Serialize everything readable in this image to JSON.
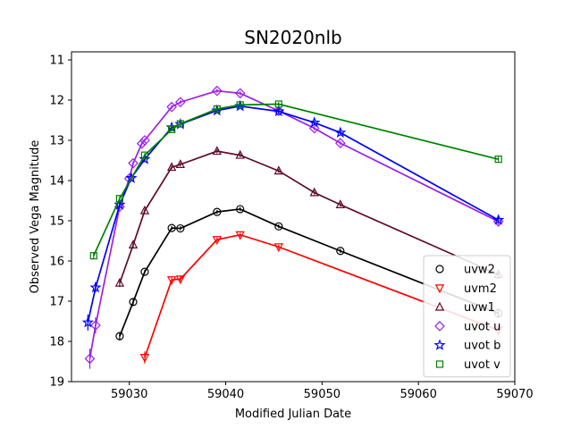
{
  "chart_data": {
    "type": "scatter",
    "title": "SN2020nlb",
    "xlabel": "Modified Julian Date",
    "ylabel": "Observed Vega Magnitude",
    "xlim": [
      59024,
      59070
    ],
    "ylim": [
      19,
      10.8
    ],
    "y_inverted": true,
    "grid": false,
    "legend_position": "lower-right",
    "xticks": [
      59030,
      59040,
      59050,
      59060,
      59070
    ],
    "yticks": [
      11,
      12,
      13,
      14,
      15,
      16,
      17,
      18,
      19
    ],
    "series": [
      {
        "name": "uvw2",
        "marker": "circle",
        "color": "#000000",
        "x": [
          59029.0,
          59030.4,
          59031.6,
          59034.4,
          59035.3,
          59039.1,
          59041.5,
          59045.5,
          59051.9,
          59068.3
        ],
        "y": [
          17.87,
          17.02,
          16.27,
          15.18,
          15.19,
          14.78,
          14.71,
          15.14,
          15.75,
          17.3
        ],
        "err": [
          0.1,
          0.08,
          0.05,
          0.05,
          0.05,
          0.05,
          0.05,
          0.05,
          0.05,
          0.12
        ]
      },
      {
        "name": "uvm2",
        "marker": "triangle-down",
        "color": "#ff0000",
        "x": [
          59031.6,
          59034.4,
          59035.3,
          59039.1,
          59041.5,
          59045.5,
          59068.3
        ],
        "y": [
          18.4,
          16.47,
          16.45,
          15.47,
          15.35,
          15.65,
          17.72
        ],
        "err": [
          0.15,
          0.06,
          0.06,
          0.05,
          0.05,
          0.05,
          0.12
        ]
      },
      {
        "name": "uvw1",
        "marker": "triangle-up",
        "color": "#5e0a26",
        "x": [
          59029.0,
          59030.4,
          59031.6,
          59034.4,
          59035.3,
          59039.1,
          59041.5,
          59045.5,
          59049.2,
          59051.9,
          59068.3
        ],
        "y": [
          16.55,
          15.6,
          14.75,
          13.67,
          13.6,
          13.27,
          13.37,
          13.76,
          14.3,
          14.6,
          16.34
        ],
        "err": [
          0.1,
          0.08,
          0.05,
          0.05,
          0.05,
          0.05,
          0.05,
          0.05,
          0.05,
          0.05,
          0.1
        ]
      },
      {
        "name": "uvot u",
        "marker": "diamond",
        "color": "#9b1fe8",
        "x": [
          59025.9,
          59026.5,
          59029.0,
          59030.0,
          59030.4,
          59031.3,
          59031.6,
          59034.4,
          59035.3,
          59039.1,
          59041.5,
          59045.5,
          59049.2,
          59051.9,
          59068.3
        ],
        "y": [
          18.43,
          17.6,
          14.65,
          13.95,
          13.57,
          13.08,
          13.0,
          12.17,
          12.05,
          11.77,
          11.83,
          12.27,
          12.7,
          13.07,
          15.02
        ],
        "err": [
          0.25,
          0.2,
          0.06,
          0.05,
          0.05,
          0.05,
          0.05,
          0.05,
          0.05,
          0.05,
          0.05,
          0.05,
          0.05,
          0.05,
          0.08
        ]
      },
      {
        "name": "uvot b",
        "marker": "star",
        "color": "#0000ff",
        "x": [
          59025.7,
          59026.5,
          59029.0,
          59030.2,
          59031.6,
          59034.4,
          59035.3,
          59039.1,
          59041.5,
          59045.5,
          59049.2,
          59051.9,
          59068.3
        ],
        "y": [
          17.53,
          16.66,
          14.6,
          13.94,
          13.47,
          12.68,
          12.6,
          12.26,
          12.15,
          12.28,
          12.56,
          12.81,
          14.98
        ],
        "err": [
          0.2,
          0.12,
          0.06,
          0.05,
          0.05,
          0.05,
          0.05,
          0.05,
          0.05,
          0.05,
          0.05,
          0.05,
          0.06
        ]
      },
      {
        "name": "uvot v",
        "marker": "square",
        "color": "#008000",
        "x": [
          59026.3,
          59029.0,
          59031.6,
          59034.4,
          59035.3,
          59039.1,
          59041.5,
          59045.5,
          59068.3
        ],
        "y": [
          15.87,
          14.45,
          13.37,
          12.73,
          12.59,
          12.22,
          12.12,
          12.1,
          13.47
        ],
        "err": [
          0.08,
          0.06,
          0.05,
          0.05,
          0.05,
          0.05,
          0.05,
          0.05,
          0.06
        ]
      }
    ]
  }
}
